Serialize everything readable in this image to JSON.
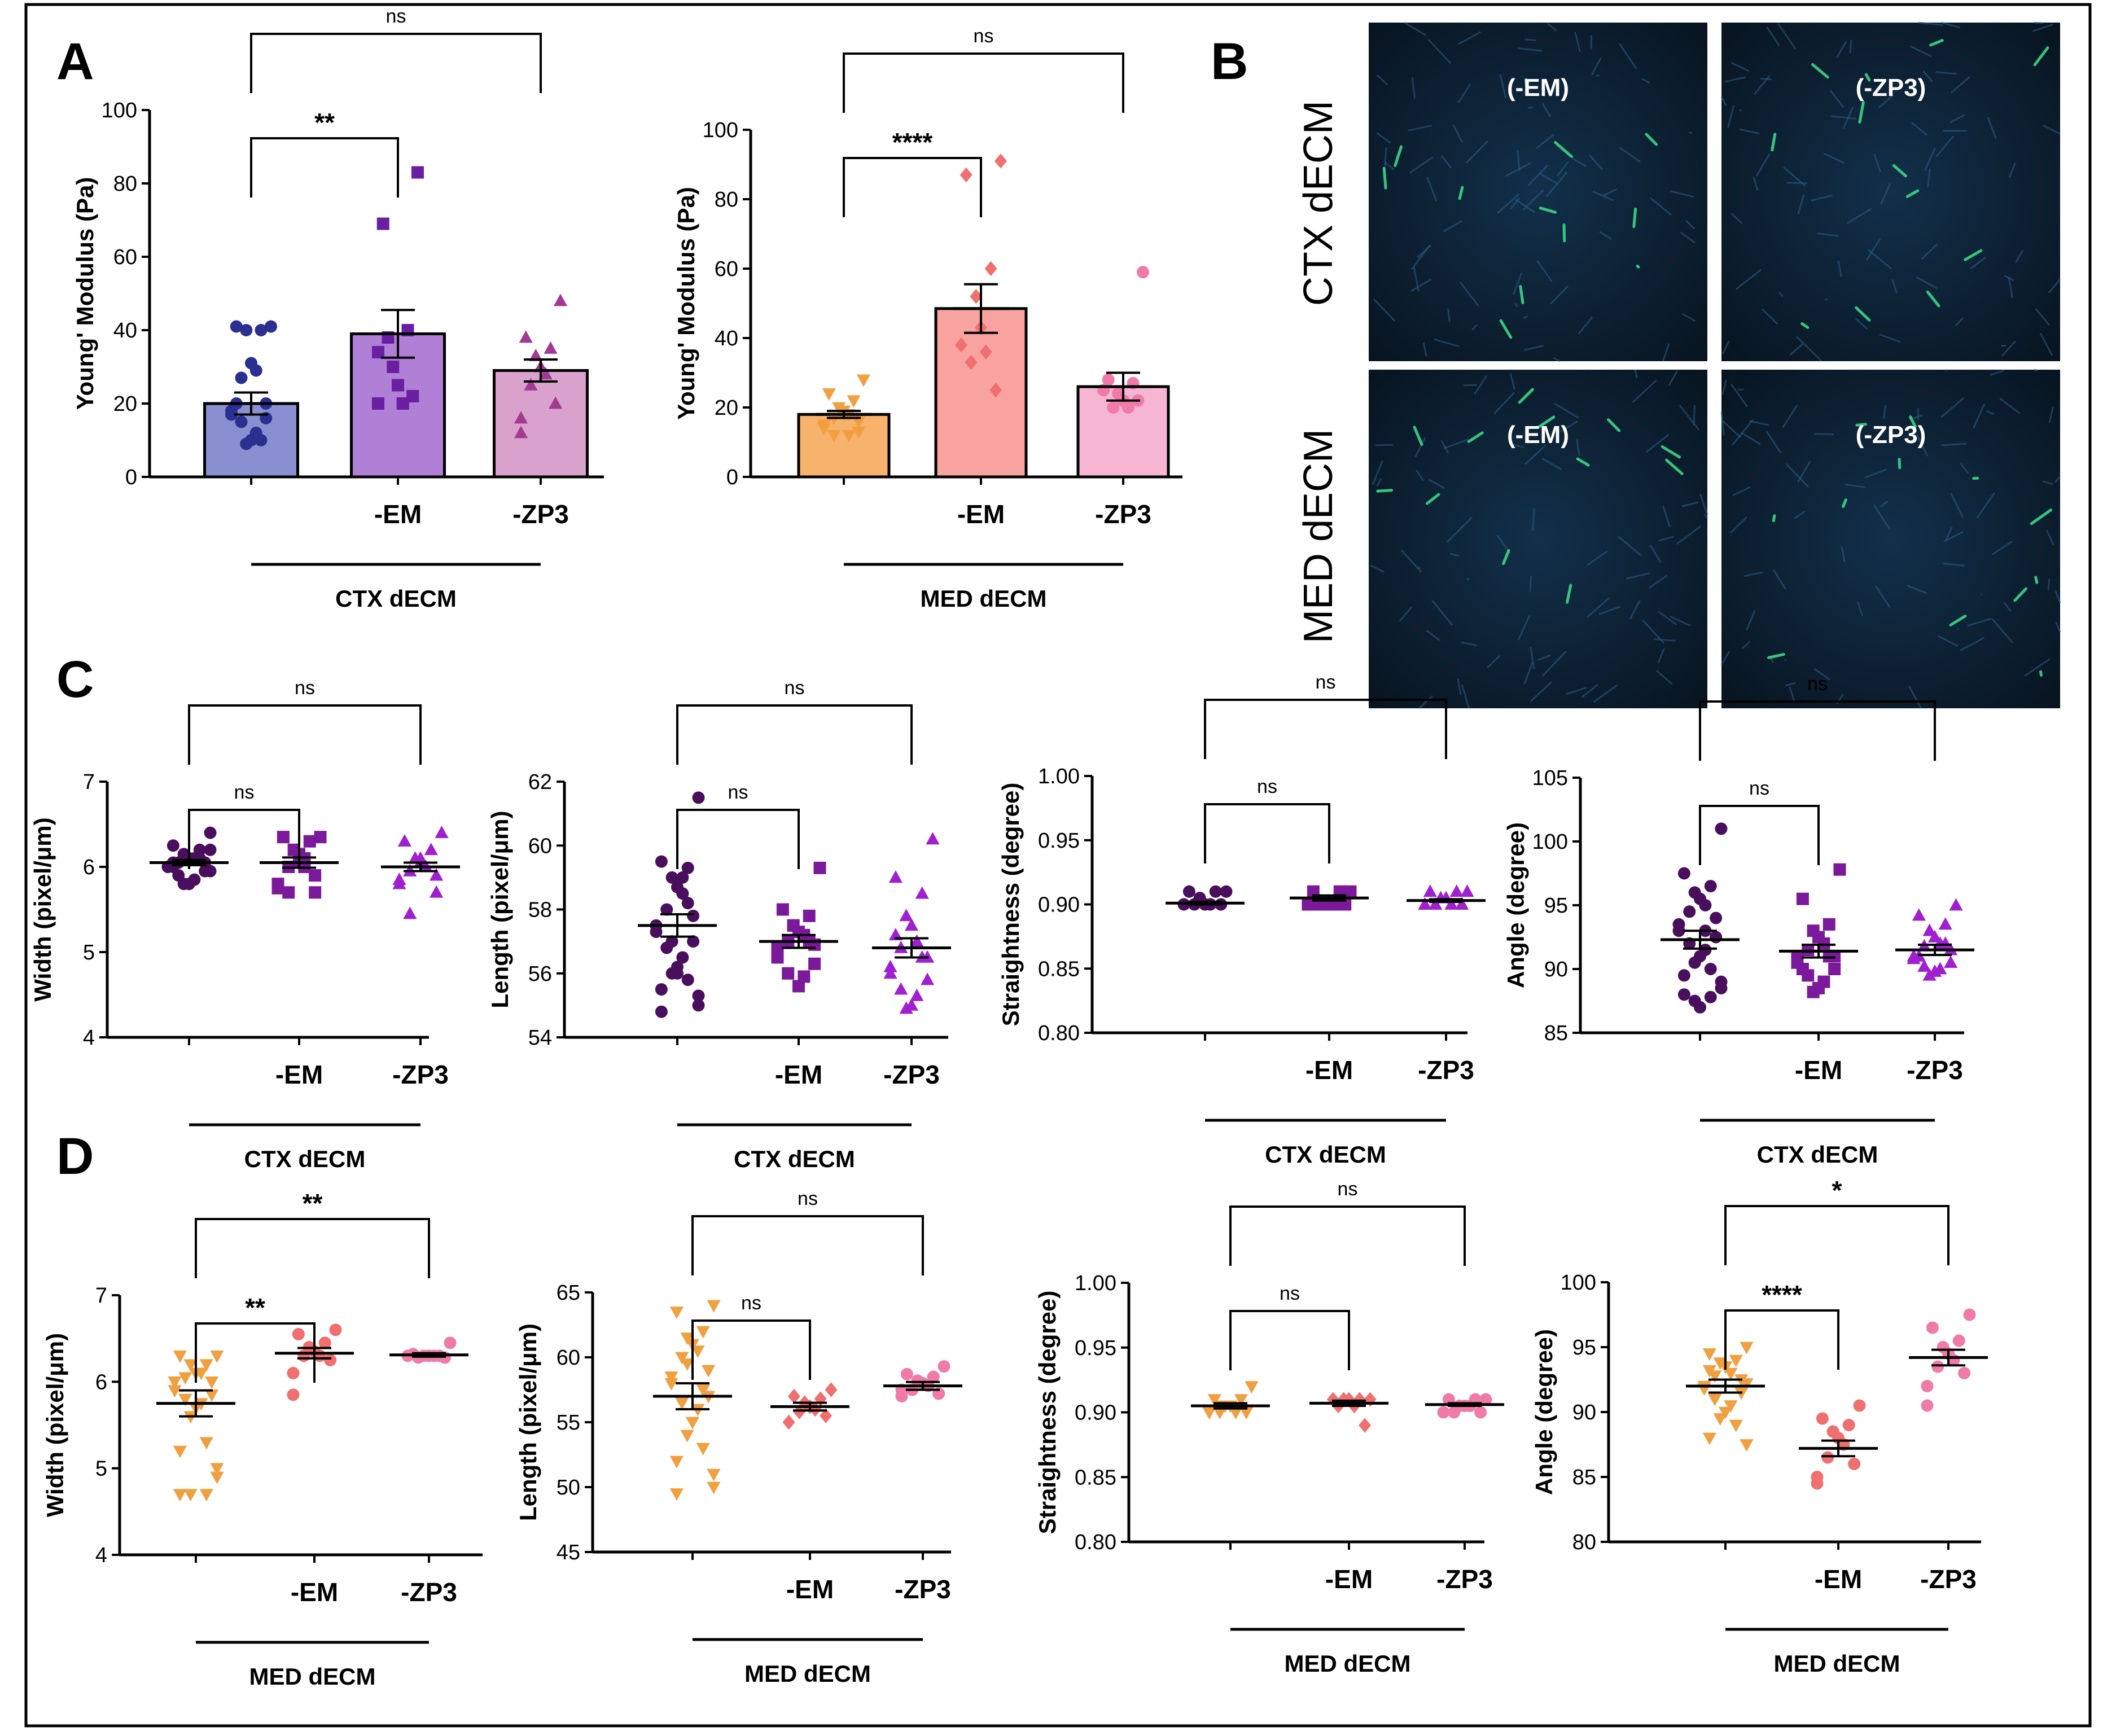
{
  "figure": {
    "panel_letters": [
      "A",
      "B",
      "C",
      "D"
    ],
    "colors": {
      "ctx_control": "#2b2f8f",
      "ctx_em": "#6a1fa3",
      "ctx_zp3": "#a33a92",
      "med_control": "#f0a040",
      "med_em": "#f06f6f",
      "med_zp3": "#f07aa8",
      "c_ctrl": "#4a0f5c",
      "c_em": "#7a1a9a",
      "c_zp3": "#a020d0"
    }
  },
  "microscopy": {
    "row_labels": [
      "CTX dECM",
      "MED dECM"
    ],
    "tiles": [
      {
        "label": "(-EM)"
      },
      {
        "label": "(-ZP3)"
      },
      {
        "label": "(-EM)"
      },
      {
        "label": "(-ZP3)"
      }
    ]
  },
  "chart_data": [
    {
      "id": "A1",
      "type": "bar",
      "panel": "A",
      "ylabel": "Young' Modulus  (Pa)",
      "ylim": [
        0,
        100
      ],
      "yticks": [
        0,
        20,
        40,
        60,
        80,
        100
      ],
      "categories": [
        "",
        "-EM",
        "-ZP3"
      ],
      "group_label": "CTX dECM",
      "series": [
        {
          "name": "CTX dECM",
          "mean": 20,
          "sem": 3,
          "color": "#2b2f8f",
          "fill": "#8a8fd1",
          "marker": "circle",
          "points": [
            41,
            41,
            40,
            40,
            31,
            29,
            27,
            20,
            18,
            17,
            16,
            15,
            12,
            10,
            9,
            10,
            20
          ]
        },
        {
          "name": "-EM",
          "mean": 39,
          "sem": 6.5,
          "color": "#6a1fa3",
          "fill": "#b07fd6",
          "marker": "square",
          "points": [
            83,
            69,
            40,
            30,
            25,
            20,
            38,
            22,
            20,
            34
          ]
        },
        {
          "name": "-ZP3",
          "mean": 29,
          "sem": 3,
          "color": "#a33a92",
          "fill": "#d9a2cd",
          "marker": "triangle",
          "points": [
            48,
            38,
            35,
            33,
            30,
            28,
            25,
            20,
            16,
            12
          ]
        }
      ],
      "comparisons": [
        {
          "from": 0,
          "to": 1,
          "label": "**"
        },
        {
          "from": 0,
          "to": 2,
          "label": "ns"
        }
      ]
    },
    {
      "id": "A2",
      "type": "bar",
      "panel": "A",
      "ylabel": "Young' Modulus  (Pa)",
      "ylim": [
        0,
        100
      ],
      "yticks": [
        0,
        20,
        40,
        60,
        80,
        100
      ],
      "categories": [
        "",
        "-EM",
        "-ZP3"
      ],
      "group_label": "MED dECM",
      "series": [
        {
          "name": "MED dECM",
          "mean": 18,
          "sem": 1,
          "color": "#f0a040",
          "fill": "#f7b26b",
          "marker": "triangle-down",
          "points": [
            28,
            24,
            22,
            20,
            19,
            18,
            17,
            16,
            15,
            14,
            13,
            12,
            12,
            18
          ]
        },
        {
          "name": "-EM",
          "mean": 48.5,
          "sem": 7,
          "color": "#f06f6f",
          "fill": "#f8a3a0",
          "marker": "diamond",
          "points": [
            91,
            87,
            60,
            52,
            43,
            36,
            33,
            25,
            38
          ]
        },
        {
          "name": "-ZP3",
          "mean": 26,
          "sem": 4,
          "color": "#f07aa8",
          "fill": "#f7b5d4",
          "marker": "circle",
          "points": [
            59,
            28,
            27,
            24,
            22,
            20,
            20,
            22,
            25
          ]
        }
      ],
      "comparisons": [
        {
          "from": 0,
          "to": 1,
          "label": "****"
        },
        {
          "from": 0,
          "to": 2,
          "label": "ns"
        }
      ]
    },
    {
      "id": "C1",
      "type": "scatter",
      "panel": "C",
      "ylabel": "Width (pixel/μm)",
      "ylim": [
        4,
        7
      ],
      "yticks": [
        4,
        5,
        6,
        7
      ],
      "categories": [
        "",
        "-EM",
        "-ZP3"
      ],
      "group_label": "CTX dECM",
      "series": [
        {
          "name": "CTX dECM",
          "mean": 6.05,
          "sem": 0.03,
          "color": "#4a0f5c",
          "marker": "circle",
          "points": [
            6.4,
            6.25,
            6.2,
            6.15,
            6.1,
            6.1,
            6.05,
            6.05,
            6.0,
            6.0,
            5.95,
            5.9,
            5.85,
            5.8,
            5.8,
            6.1,
            6.0,
            5.95,
            6.2,
            6.05
          ]
        },
        {
          "name": "-EM",
          "mean": 6.05,
          "sem": 0.06,
          "color": "#7a1a9a",
          "marker": "square",
          "points": [
            6.35,
            6.35,
            6.3,
            6.2,
            6.15,
            6.0,
            6.0,
            5.9,
            5.8,
            5.75,
            5.7,
            5.7,
            6.1,
            6.05
          ]
        },
        {
          "name": "-ZP3",
          "mean": 6.0,
          "sem": 0.05,
          "color": "#a020d0",
          "marker": "triangle",
          "points": [
            6.4,
            6.3,
            6.2,
            6.1,
            6.05,
            6.0,
            5.95,
            5.9,
            5.85,
            5.8,
            5.7,
            5.45,
            6.0,
            6.1
          ]
        }
      ],
      "comparisons": [
        {
          "from": 0,
          "to": 1,
          "label": "ns"
        },
        {
          "from": 0,
          "to": 2,
          "label": "ns"
        }
      ]
    },
    {
      "id": "C2",
      "type": "scatter",
      "panel": "C",
      "ylabel": "Length (pixel/μm)",
      "ylim": [
        54,
        62
      ],
      "yticks": [
        54,
        56,
        58,
        60,
        62
      ],
      "categories": [
        "",
        "-EM",
        "-ZP3"
      ],
      "group_label": "CTX dECM",
      "series": [
        {
          "name": "CTX dECM",
          "mean": 57.5,
          "sem": 0.35,
          "color": "#4a0f5c",
          "marker": "circle",
          "points": [
            61.5,
            59.5,
            59.3,
            59.0,
            58.7,
            58.5,
            58.0,
            57.8,
            57.5,
            57.3,
            57.0,
            56.8,
            56.5,
            56.2,
            56.0,
            55.8,
            55.5,
            55.3,
            55.0,
            54.8,
            58.2,
            57.0,
            56.0,
            59.0
          ]
        },
        {
          "name": "-EM",
          "mean": 57.0,
          "sem": 0.2,
          "color": "#7a1a9a",
          "marker": "square",
          "points": [
            59.3,
            58.0,
            57.8,
            57.5,
            57.3,
            57.2,
            57.0,
            56.9,
            56.8,
            56.5,
            56.3,
            56.0,
            55.9,
            55.6,
            57.5,
            57.0
          ]
        },
        {
          "name": "-ZP3",
          "mean": 56.8,
          "sem": 0.3,
          "color": "#a020d0",
          "marker": "triangle",
          "points": [
            60.2,
            59.0,
            58.5,
            57.8,
            57.5,
            57.0,
            56.8,
            56.5,
            56.2,
            56.0,
            55.8,
            55.5,
            55.3,
            55.0,
            54.9,
            56.5,
            57.2
          ]
        }
      ],
      "comparisons": [
        {
          "from": 0,
          "to": 1,
          "label": "ns"
        },
        {
          "from": 0,
          "to": 2,
          "label": "ns"
        }
      ]
    },
    {
      "id": "C3",
      "type": "scatter",
      "panel": "C",
      "ylabel": "Straightness (degree)",
      "ylim": [
        0.8,
        1.0
      ],
      "yticks": [
        0.8,
        0.85,
        0.9,
        0.95,
        1.0
      ],
      "tick_decimals": 2,
      "categories": [
        "",
        "-EM",
        "-ZP3"
      ],
      "group_label": "CTX dECM",
      "series": [
        {
          "name": "CTX dECM",
          "mean": 0.901,
          "sem": 0.001,
          "color": "#4a0f5c",
          "marker": "circle",
          "points": [
            0.91,
            0.91,
            0.91,
            0.905,
            0.9,
            0.9,
            0.9,
            0.9,
            0.9,
            0.9,
            0.9,
            0.9,
            0.9,
            0.9
          ]
        },
        {
          "name": "-EM",
          "mean": 0.905,
          "sem": 0.002,
          "color": "#7a1a9a",
          "marker": "square",
          "points": [
            0.91,
            0.91,
            0.91,
            0.9,
            0.9,
            0.9,
            0.9,
            0.9,
            0.9,
            0.9,
            0.9,
            0.9
          ]
        },
        {
          "name": "-ZP3",
          "mean": 0.903,
          "sem": 0.001,
          "color": "#a020d0",
          "marker": "triangle",
          "points": [
            0.91,
            0.91,
            0.91,
            0.905,
            0.905,
            0.9,
            0.9,
            0.9,
            0.9,
            0.9,
            0.9,
            0.9
          ]
        }
      ],
      "comparisons": [
        {
          "from": 0,
          "to": 1,
          "label": "ns"
        },
        {
          "from": 0,
          "to": 2,
          "label": "ns"
        }
      ]
    },
    {
      "id": "C4",
      "type": "scatter",
      "panel": "C",
      "ylabel": "Angle (degree)",
      "ylim": [
        85,
        105
      ],
      "yticks": [
        85,
        90,
        95,
        100,
        105
      ],
      "categories": [
        "",
        "-EM",
        "-ZP3"
      ],
      "group_label": "CTX dECM",
      "series": [
        {
          "name": "CTX dECM",
          "mean": 92.3,
          "sem": 0.7,
          "color": "#4a0f5c",
          "marker": "circle",
          "points": [
            101,
            97.5,
            96.5,
            96,
            95.5,
            95,
            94.5,
            94,
            93.5,
            93,
            92.5,
            92,
            91.5,
            91,
            90.5,
            90,
            89.5,
            89,
            88.5,
            88,
            87.8,
            87.5,
            87,
            93
          ]
        },
        {
          "name": "-EM",
          "mean": 91.4,
          "sem": 0.5,
          "color": "#7a1a9a",
          "marker": "square",
          "points": [
            97.8,
            95.5,
            93.5,
            93,
            92.5,
            92,
            91.5,
            91,
            90.8,
            90.5,
            90,
            89.5,
            89,
            88.5,
            88.2,
            91,
            90
          ]
        },
        {
          "name": "-ZP3",
          "mean": 91.5,
          "sem": 0.4,
          "color": "#a020d0",
          "marker": "triangle",
          "points": [
            95,
            94.2,
            93.5,
            93,
            92.5,
            92,
            91.8,
            91.5,
            91,
            90.8,
            90.5,
            90.2,
            90,
            89.8,
            89.5,
            92,
            91
          ]
        }
      ],
      "comparisons": [
        {
          "from": 0,
          "to": 1,
          "label": "ns"
        },
        {
          "from": 0,
          "to": 2,
          "label": "ns"
        }
      ]
    },
    {
      "id": "D1",
      "type": "scatter",
      "panel": "D",
      "ylabel": "Width (pixel/μm)",
      "ylim": [
        4,
        7
      ],
      "yticks": [
        4,
        5,
        6,
        7
      ],
      "categories": [
        "",
        "-EM",
        "-ZP3"
      ],
      "group_label": "MED dECM",
      "series": [
        {
          "name": "MED dECM",
          "mean": 5.75,
          "sem": 0.15,
          "color": "#f0a040",
          "marker": "triangle-down",
          "points": [
            6.3,
            6.3,
            6.2,
            6.2,
            6.1,
            6.1,
            6.05,
            6.0,
            6.0,
            5.9,
            5.85,
            5.8,
            5.75,
            5.7,
            5.6,
            5.3,
            5.2,
            5.0,
            4.9,
            4.7,
            4.7,
            4.7
          ]
        },
        {
          "name": "-EM",
          "mean": 6.33,
          "sem": 0.06,
          "color": "#f06f6f",
          "marker": "circle",
          "points": [
            6.6,
            6.55,
            6.45,
            6.4,
            6.35,
            6.3,
            6.3,
            6.25,
            6.1,
            5.85
          ]
        },
        {
          "name": "-ZP3",
          "mean": 6.31,
          "sem": 0.02,
          "color": "#f07aa8",
          "marker": "circle",
          "points": [
            6.45,
            6.32,
            6.3,
            6.3,
            6.3,
            6.3,
            6.28,
            6.28,
            6.3
          ]
        }
      ],
      "comparisons": [
        {
          "from": 0,
          "to": 1,
          "label": "**"
        },
        {
          "from": 0,
          "to": 2,
          "label": "**"
        }
      ]
    },
    {
      "id": "D2",
      "type": "scatter",
      "panel": "D",
      "ylabel": "Length (pixel/μm)",
      "ylim": [
        45,
        65
      ],
      "yticks": [
        45,
        50,
        55,
        60,
        65
      ],
      "categories": [
        "",
        "-EM",
        "-ZP3"
      ],
      "group_label": "MED dECM",
      "series": [
        {
          "name": "MED dECM",
          "mean": 57,
          "sem": 1.0,
          "color": "#f0a040",
          "marker": "triangle-down",
          "points": [
            64,
            63.5,
            62,
            61.5,
            61,
            60.5,
            60,
            59,
            58.5,
            58,
            57,
            56.5,
            56,
            55,
            54,
            53,
            52,
            51,
            50,
            49.5,
            57.5,
            59.5
          ]
        },
        {
          "name": "-EM",
          "mean": 56.2,
          "sem": 0.3,
          "color": "#f06f6f",
          "marker": "diamond",
          "points": [
            57.5,
            57,
            56.8,
            56.5,
            56.2,
            56,
            55.8,
            55.5,
            55,
            55
          ]
        },
        {
          "name": "-ZP3",
          "mean": 57.8,
          "sem": 0.3,
          "color": "#f07aa8",
          "marker": "circle",
          "points": [
            59.3,
            58.7,
            58.5,
            58.2,
            58,
            57.8,
            57.5,
            57.2,
            57,
            57.5
          ]
        }
      ],
      "comparisons": [
        {
          "from": 0,
          "to": 1,
          "label": "ns"
        },
        {
          "from": 0,
          "to": 2,
          "label": "ns"
        }
      ]
    },
    {
      "id": "D3",
      "type": "scatter",
      "panel": "D",
      "ylabel": "Straightness (degree)",
      "ylim": [
        0.8,
        1.0
      ],
      "yticks": [
        0.8,
        0.85,
        0.9,
        0.95,
        1.0
      ],
      "tick_decimals": 2,
      "categories": [
        "",
        "-EM",
        "-ZP3"
      ],
      "group_label": "MED dECM",
      "series": [
        {
          "name": "MED dECM",
          "mean": 0.905,
          "sem": 0.002,
          "color": "#f0a040",
          "marker": "triangle-down",
          "points": [
            0.92,
            0.91,
            0.91,
            0.905,
            0.905,
            0.9,
            0.9,
            0.9,
            0.9,
            0.9,
            0.9,
            0.905
          ]
        },
        {
          "name": "-EM",
          "mean": 0.907,
          "sem": 0.002,
          "color": "#f06f6f",
          "marker": "diamond",
          "points": [
            0.91,
            0.91,
            0.91,
            0.91,
            0.91,
            0.905,
            0.905,
            0.89
          ]
        },
        {
          "name": "-ZP3",
          "mean": 0.906,
          "sem": 0.001,
          "color": "#f07aa8",
          "marker": "circle",
          "points": [
            0.91,
            0.91,
            0.91,
            0.905,
            0.905,
            0.905,
            0.9,
            0.9,
            0.9
          ]
        }
      ],
      "comparisons": [
        {
          "from": 0,
          "to": 1,
          "label": "ns"
        },
        {
          "from": 0,
          "to": 2,
          "label": "ns"
        }
      ]
    },
    {
      "id": "D4",
      "type": "scatter",
      "panel": "D",
      "ylabel": "Angle (degree)",
      "ylim": [
        80,
        100
      ],
      "yticks": [
        80,
        85,
        90,
        95,
        100
      ],
      "categories": [
        "",
        "-EM",
        "-ZP3"
      ],
      "group_label": "MED dECM",
      "series": [
        {
          "name": "MED dECM",
          "mean": 92,
          "sem": 0.5,
          "color": "#f0a040",
          "marker": "triangle-down",
          "points": [
            95,
            94.5,
            94,
            93.8,
            93.5,
            93,
            92.8,
            92.5,
            92,
            91.8,
            91.5,
            91,
            90.5,
            90,
            89.5,
            89,
            88,
            87.5,
            92.2,
            93.2
          ]
        },
        {
          "name": "-EM",
          "mean": 87.2,
          "sem": 0.6,
          "color": "#f06f6f",
          "marker": "circle",
          "points": [
            90.5,
            89.5,
            89,
            88.5,
            88,
            87.5,
            86.5,
            86,
            85,
            84.5
          ]
        },
        {
          "name": "-ZP3",
          "mean": 94.2,
          "sem": 0.6,
          "color": "#f07aa8",
          "marker": "circle",
          "points": [
            97.5,
            96.5,
            95.5,
            95,
            94.5,
            94,
            93.5,
            93,
            92,
            90.5
          ]
        }
      ],
      "comparisons": [
        {
          "from": 0,
          "to": 1,
          "label": "****"
        },
        {
          "from": 0,
          "to": 2,
          "label": "*"
        }
      ]
    }
  ]
}
